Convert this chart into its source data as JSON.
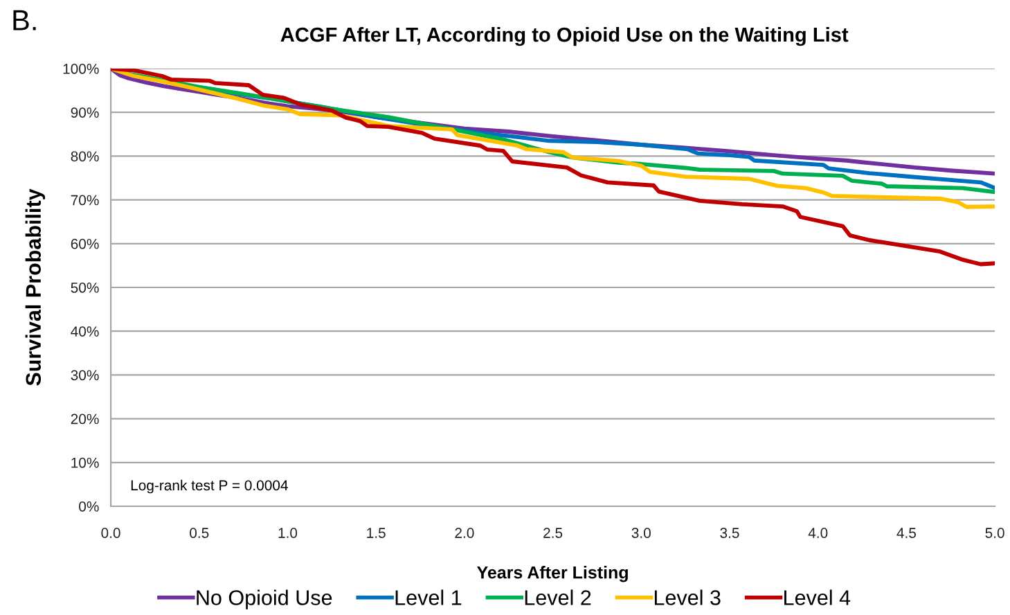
{
  "chart_data": {
    "type": "line",
    "title": "ACGF After LT, According to Opioid Use on the Waiting List",
    "xlabel": "Years After Listing",
    "ylabel": "Survival Probability",
    "annotations": [
      "B.",
      "Log-rank test P = 0.0004"
    ],
    "xlim": [
      0,
      5
    ],
    "ylim": [
      0,
      100
    ],
    "xticks": [
      {
        "value": 0,
        "label": "0.0"
      },
      {
        "value": 0.5,
        "label": "0.5"
      },
      {
        "value": 1,
        "label": "1.0"
      },
      {
        "value": 1.5,
        "label": "1.5"
      },
      {
        "value": 2,
        "label": "2.0"
      },
      {
        "value": 2.5,
        "label": "2.5"
      },
      {
        "value": 3,
        "label": "3.0"
      },
      {
        "value": 3.5,
        "label": "3.5"
      },
      {
        "value": 4,
        "label": "4.0"
      },
      {
        "value": 4.5,
        "label": "4.5"
      },
      {
        "value": 5,
        "label": "5.0"
      }
    ],
    "yticks": [
      {
        "value": 0,
        "label": "0%"
      },
      {
        "value": 10,
        "label": "10%"
      },
      {
        "value": 20,
        "label": "20%"
      },
      {
        "value": 30,
        "label": "30%"
      },
      {
        "value": 40,
        "label": "40%"
      },
      {
        "value": 50,
        "label": "50%"
      },
      {
        "value": 60,
        "label": "60%"
      },
      {
        "value": 70,
        "label": "70%"
      },
      {
        "value": 80,
        "label": "80%"
      },
      {
        "value": 90,
        "label": "90%"
      },
      {
        "value": 100,
        "label": "100%"
      }
    ],
    "grid": "y",
    "legend": "bottom",
    "marker": "none",
    "line_style": "solid",
    "series": [
      {
        "name": "No Opioid Use",
        "color": "#7030a0",
        "x": [
          0,
          0.05,
          0.1,
          0.2,
          0.3,
          0.4,
          0.5,
          0.6,
          0.7,
          0.8,
          0.9,
          1.0,
          1.25,
          1.5,
          1.75,
          2.0,
          2.25,
          2.5,
          2.75,
          3.0,
          3.25,
          3.5,
          3.64,
          3.75,
          4.0,
          4.16,
          4.25,
          4.5,
          4.55,
          4.75,
          5.0
        ],
        "values": [
          100,
          98.5,
          97.8,
          96.8,
          96.0,
          95.3,
          94.7,
          94.0,
          93.4,
          92.7,
          92.0,
          91.4,
          90.5,
          88.9,
          87.6,
          86.3,
          85.6,
          84.5,
          83.6,
          82.6,
          81.9,
          81.1,
          80.6,
          80.2,
          79.4,
          79.0,
          78.6,
          77.6,
          77.4,
          76.7,
          76.0
        ]
      },
      {
        "name": "Level 1",
        "color": "#0070c0",
        "x": [
          0.5,
          0.7,
          0.9,
          1.0,
          1.2,
          1.5,
          1.75,
          2.09,
          2.25,
          2.48,
          2.75,
          3.0,
          3.26,
          3.32,
          3.5,
          3.61,
          3.64,
          4.03,
          4.06,
          4.29,
          4.55,
          4.92,
          5.0
        ],
        "values": [
          95.5,
          94.3,
          93.2,
          92.5,
          91.2,
          88.9,
          87.3,
          85.3,
          84.6,
          83.5,
          83.2,
          82.6,
          81.6,
          80.6,
          80.2,
          79.8,
          79.0,
          78.0,
          77.2,
          76.1,
          75.2,
          74.0,
          72.7
        ]
      },
      {
        "name": "Level 2",
        "color": "#00b050",
        "x": [
          0,
          0.1,
          0.3,
          0.5,
          0.75,
          1.0,
          1.25,
          1.57,
          1.96,
          2.22,
          2.48,
          2.61,
          2.87,
          3.0,
          3.25,
          3.33,
          3.75,
          3.8,
          4.14,
          4.19,
          4.36,
          4.39,
          4.82,
          5.0
        ],
        "values": [
          100,
          98.8,
          97.3,
          95.8,
          94.2,
          92.5,
          90.8,
          88.9,
          85.9,
          83.8,
          80.9,
          79.7,
          78.5,
          78.2,
          77.3,
          76.9,
          76.6,
          76.0,
          75.5,
          74.4,
          73.7,
          73.1,
          72.7,
          71.8
        ]
      },
      {
        "name": "Level 3",
        "color": "#ffc000",
        "x": [
          0,
          0.13,
          0.3,
          0.48,
          0.7,
          0.87,
          1.0,
          1.07,
          1.3,
          1.57,
          1.93,
          1.96,
          2.3,
          2.35,
          2.56,
          2.61,
          2.87,
          3.0,
          3.05,
          3.25,
          3.61,
          3.77,
          3.93,
          4.03,
          4.08,
          4.69,
          4.79,
          4.84,
          5.0
        ],
        "values": [
          100,
          98.3,
          97.0,
          95.4,
          93.3,
          91.5,
          90.7,
          89.6,
          89.3,
          86.9,
          86.1,
          84.8,
          82.4,
          81.6,
          80.9,
          79.7,
          78.9,
          77.8,
          76.4,
          75.3,
          74.8,
          73.2,
          72.7,
          71.7,
          70.9,
          70.3,
          69.5,
          68.4,
          68.5
        ]
      },
      {
        "name": "Level 4",
        "color": "#c00000",
        "x": [
          0,
          0.13,
          0.29,
          0.34,
          0.56,
          0.59,
          0.78,
          0.86,
          0.98,
          1.08,
          1.25,
          1.33,
          1.41,
          1.45,
          1.57,
          1.76,
          1.83,
          2.09,
          2.13,
          2.22,
          2.27,
          2.58,
          2.66,
          2.81,
          3.07,
          3.1,
          3.33,
          3.57,
          3.8,
          3.88,
          3.9,
          4.14,
          4.18,
          4.29,
          4.69,
          4.82,
          4.92,
          5.0
        ],
        "values": [
          100,
          99.6,
          98.3,
          97.5,
          97.2,
          96.7,
          96.2,
          94.0,
          93.3,
          91.7,
          90.4,
          88.8,
          88.0,
          86.9,
          86.7,
          85.3,
          84.0,
          82.4,
          81.5,
          81.2,
          78.8,
          77.4,
          75.6,
          74.0,
          73.3,
          71.9,
          69.8,
          69.0,
          68.5,
          67.4,
          66.1,
          64.0,
          61.9,
          60.8,
          58.2,
          56.3,
          55.3,
          55.5
        ]
      }
    ]
  }
}
